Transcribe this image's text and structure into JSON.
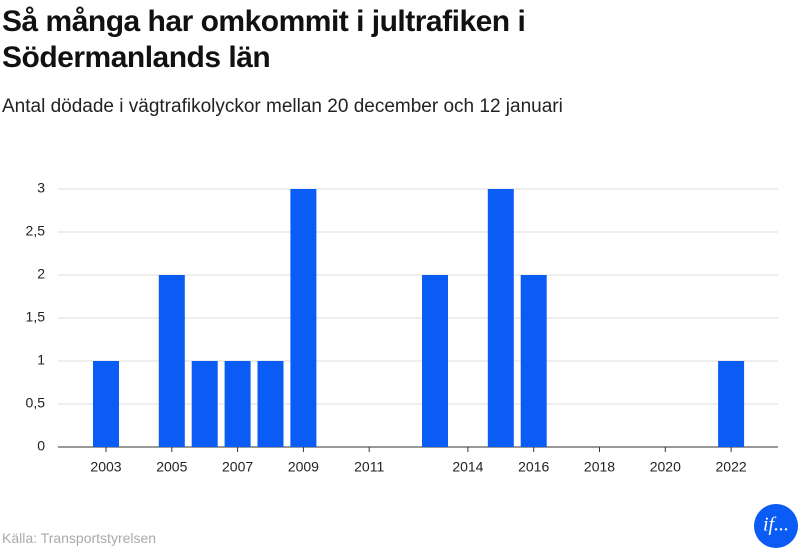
{
  "chart_data": {
    "type": "bar",
    "title": "Så många har omkommit i jultrafiken i Södermanlands län",
    "subtitle": "Antal dödade i vägtrafikolyckor mellan 20 december och 12 januari",
    "source": "Källa: Transportstyrelsen",
    "logo": "if...",
    "categories": [
      "2003",
      null,
      "2005",
      null,
      "2007",
      null,
      "2009",
      null,
      "2011",
      null,
      null,
      "2014",
      null,
      "2016",
      null,
      "2018",
      null,
      "2020",
      null,
      "2022"
    ],
    "values": [
      1,
      0,
      2,
      1,
      1,
      1,
      3,
      0,
      0,
      0,
      2,
      0,
      3,
      2,
      0,
      0,
      0,
      0,
      0,
      1
    ],
    "color": "#0a5cf5",
    "ylim": [
      0,
      3
    ],
    "yticks": [
      0,
      {
        "value": 0.5,
        "label": "0,5"
      },
      1,
      {
        "value": 1.5,
        "label": "1,5"
      },
      2,
      {
        "value": 2.5,
        "label": "2,5"
      },
      3
    ],
    "grid": true
  }
}
